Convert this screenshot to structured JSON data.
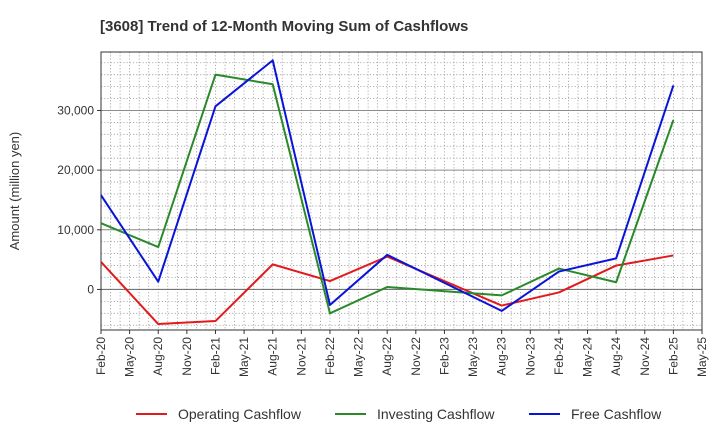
{
  "chart_data": {
    "type": "line",
    "title": "[3608]  Trend of 12-Month Moving Sum of Cashflows",
    "ylabel": "Amount (million yen)",
    "xlabel": "",
    "ylim": [
      -6800,
      39800
    ],
    "yticks": [
      0,
      10000,
      20000,
      30000
    ],
    "ytick_labels": [
      "0",
      "10,000",
      "20,000",
      "30,000"
    ],
    "xtick_labels": [
      "Feb-20",
      "May-20",
      "Aug-20",
      "Nov-20",
      "Feb-21",
      "May-21",
      "Aug-21",
      "Nov-21",
      "Feb-22",
      "May-22",
      "Aug-22",
      "Nov-22",
      "Feb-23",
      "May-23",
      "Aug-23",
      "Nov-23",
      "Feb-24",
      "May-24",
      "Aug-24",
      "Nov-24",
      "Feb-25",
      "May-25"
    ],
    "grid": true,
    "legend_position": "bottom",
    "series": [
      {
        "name": "Operating Cashflow",
        "color": "#e31a1c",
        "points": [
          {
            "x": "Feb-20",
            "y": 4600
          },
          {
            "x": "Aug-20",
            "y": -5800
          },
          {
            "x": "Feb-21",
            "y": -5300
          },
          {
            "x": "Aug-21",
            "y": 4200
          },
          {
            "x": "Feb-22",
            "y": 1400
          },
          {
            "x": "Aug-22",
            "y": 5500
          },
          {
            "x": "Aug-23",
            "y": -2700
          },
          {
            "x": "Feb-24",
            "y": -500
          },
          {
            "x": "Aug-24",
            "y": 4000
          },
          {
            "x": "Feb-25",
            "y": 5700
          }
        ]
      },
      {
        "name": "Investing Cashflow",
        "color": "#2a8a2a",
        "points": [
          {
            "x": "Feb-20",
            "y": 11100
          },
          {
            "x": "Aug-20",
            "y": 7100
          },
          {
            "x": "Feb-21",
            "y": 36000
          },
          {
            "x": "Aug-21",
            "y": 34400
          },
          {
            "x": "Feb-22",
            "y": -4000
          },
          {
            "x": "Aug-22",
            "y": 400
          },
          {
            "x": "Aug-23",
            "y": -1000
          },
          {
            "x": "Feb-24",
            "y": 3500
          },
          {
            "x": "Aug-24",
            "y": 1200
          },
          {
            "x": "Feb-25",
            "y": 28400
          }
        ]
      },
      {
        "name": "Free Cashflow",
        "color": "#0a14d8",
        "points": [
          {
            "x": "Feb-20",
            "y": 15800
          },
          {
            "x": "Aug-20",
            "y": 1300
          },
          {
            "x": "Feb-21",
            "y": 30700
          },
          {
            "x": "Aug-21",
            "y": 38400
          },
          {
            "x": "Feb-22",
            "y": -2600
          },
          {
            "x": "Aug-22",
            "y": 5800
          },
          {
            "x": "Aug-23",
            "y": -3600
          },
          {
            "x": "Feb-24",
            "y": 3000
          },
          {
            "x": "Aug-24",
            "y": 5200
          },
          {
            "x": "Feb-25",
            "y": 34200
          }
        ]
      }
    ]
  }
}
